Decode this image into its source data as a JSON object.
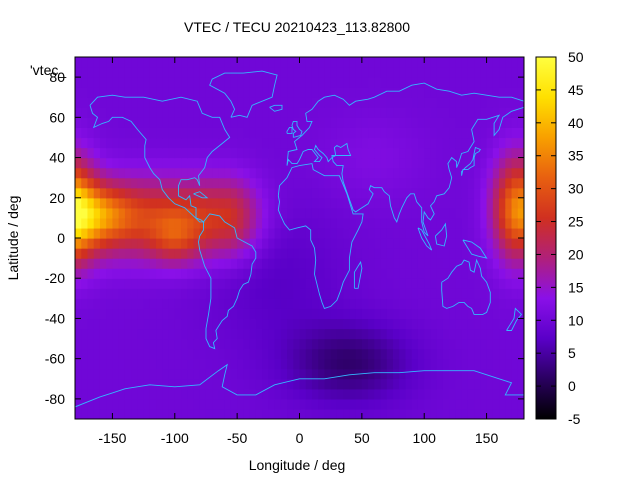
{
  "chart_data": {
    "type": "heatmap",
    "title": "VTEC / TECU 20210423_113.82800",
    "xlabel": "Longitude / deg",
    "ylabel": "Latitude / deg",
    "key_label": "'vtec_",
    "xlim": [
      -180,
      180
    ],
    "ylim": [
      -90,
      90
    ],
    "xticks": [
      -150,
      -100,
      -50,
      0,
      50,
      100,
      150
    ],
    "yticks": [
      -80,
      -60,
      -40,
      -20,
      0,
      20,
      40,
      60,
      80
    ],
    "xtick_labels": [
      "-150",
      "-100",
      "-50",
      "0",
      "50",
      "100",
      "150"
    ],
    "ytick_labels": [
      "-80",
      "-60",
      "-40",
      "-20",
      "0",
      "20",
      "40",
      "60",
      "80"
    ],
    "colorbar": {
      "range": [
        -5,
        50
      ],
      "ticks": [
        -5,
        0,
        5,
        10,
        15,
        20,
        25,
        30,
        35,
        40,
        45,
        50
      ],
      "tick_labels": [
        "-5",
        "0",
        "5",
        "10",
        "15",
        "20",
        "25",
        "30",
        "35",
        "40",
        "45",
        "50"
      ],
      "palette": [
        "#000000",
        "#2a0060",
        "#5a00c8",
        "#8a10e8",
        "#b0207a",
        "#d03020",
        "#e86010",
        "#f8a000",
        "#ffe000",
        "#ffff40"
      ]
    },
    "grid": false,
    "legend": "top-left",
    "features": {
      "background_vtec": 10,
      "maxima": [
        {
          "lon": -160,
          "lat": 12,
          "vtec": 37
        },
        {
          "lon": -100,
          "lat": 0,
          "vtec": 33
        },
        {
          "lon": 175,
          "lat": 15,
          "vtec": 33
        }
      ],
      "band": {
        "lat_center": 10,
        "lon_range": [
          -180,
          -60
        ],
        "vtec": 27
      },
      "minimum": {
        "lon": 40,
        "lat": -62,
        "vtec": 2
      }
    },
    "colors": {
      "coastline": "#33b8ff",
      "frame": "#000000"
    }
  }
}
